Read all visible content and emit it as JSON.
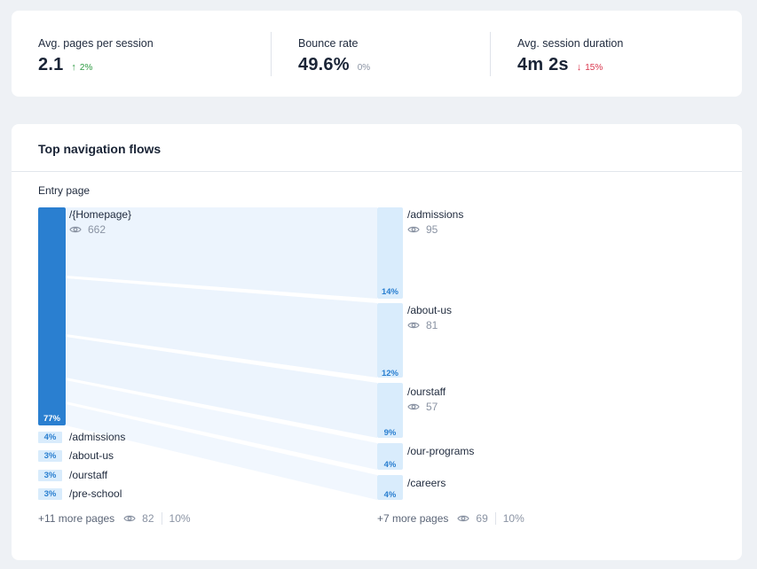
{
  "kpis": [
    {
      "label": "Avg. pages per session",
      "value": "2.1",
      "delta": "2%",
      "direction": "up",
      "arrow": "↑"
    },
    {
      "label": "Bounce rate",
      "value": "49.6%",
      "delta": "0%",
      "direction": "flat",
      "arrow": ""
    },
    {
      "label": "Avg. session duration",
      "value": "4m 2s",
      "delta": "15%",
      "direction": "down",
      "arrow": "↓"
    }
  ],
  "flows": {
    "title": "Top navigation flows",
    "entry_label": "Entry page",
    "entry": {
      "page": "/{Homepage}",
      "views": "662",
      "percent": "77%"
    },
    "destinations": [
      {
        "page": "/admissions",
        "views": "95",
        "percent": "14%"
      },
      {
        "page": "/about-us",
        "views": "81",
        "percent": "12%"
      },
      {
        "page": "/ourstaff",
        "views": "57",
        "percent": "9%"
      },
      {
        "page": "/our-programs",
        "views": "",
        "percent": "4%"
      },
      {
        "page": "/careers",
        "views": "",
        "percent": "4%"
      }
    ],
    "other_entries": [
      {
        "page": "/admissions",
        "percent": "4%"
      },
      {
        "page": "/about-us",
        "percent": "3%"
      },
      {
        "page": "/ourstaff",
        "percent": "3%"
      },
      {
        "page": "/pre-school",
        "percent": "3%"
      }
    ],
    "entry_more": {
      "label": "+11 more pages",
      "views": "82",
      "percent": "10%"
    },
    "dest_more": {
      "label": "+7 more pages",
      "views": "69",
      "percent": "10%"
    }
  },
  "colors": {
    "primary_bar": "#2a7fd0",
    "light_bar": "#d9ecfc",
    "flow_band": "#eaf3fc",
    "up": "#2f9b43",
    "down": "#d8344b"
  },
  "icons": {
    "views": "eye-icon",
    "up": "arrow-up-icon",
    "down": "arrow-down-icon"
  }
}
